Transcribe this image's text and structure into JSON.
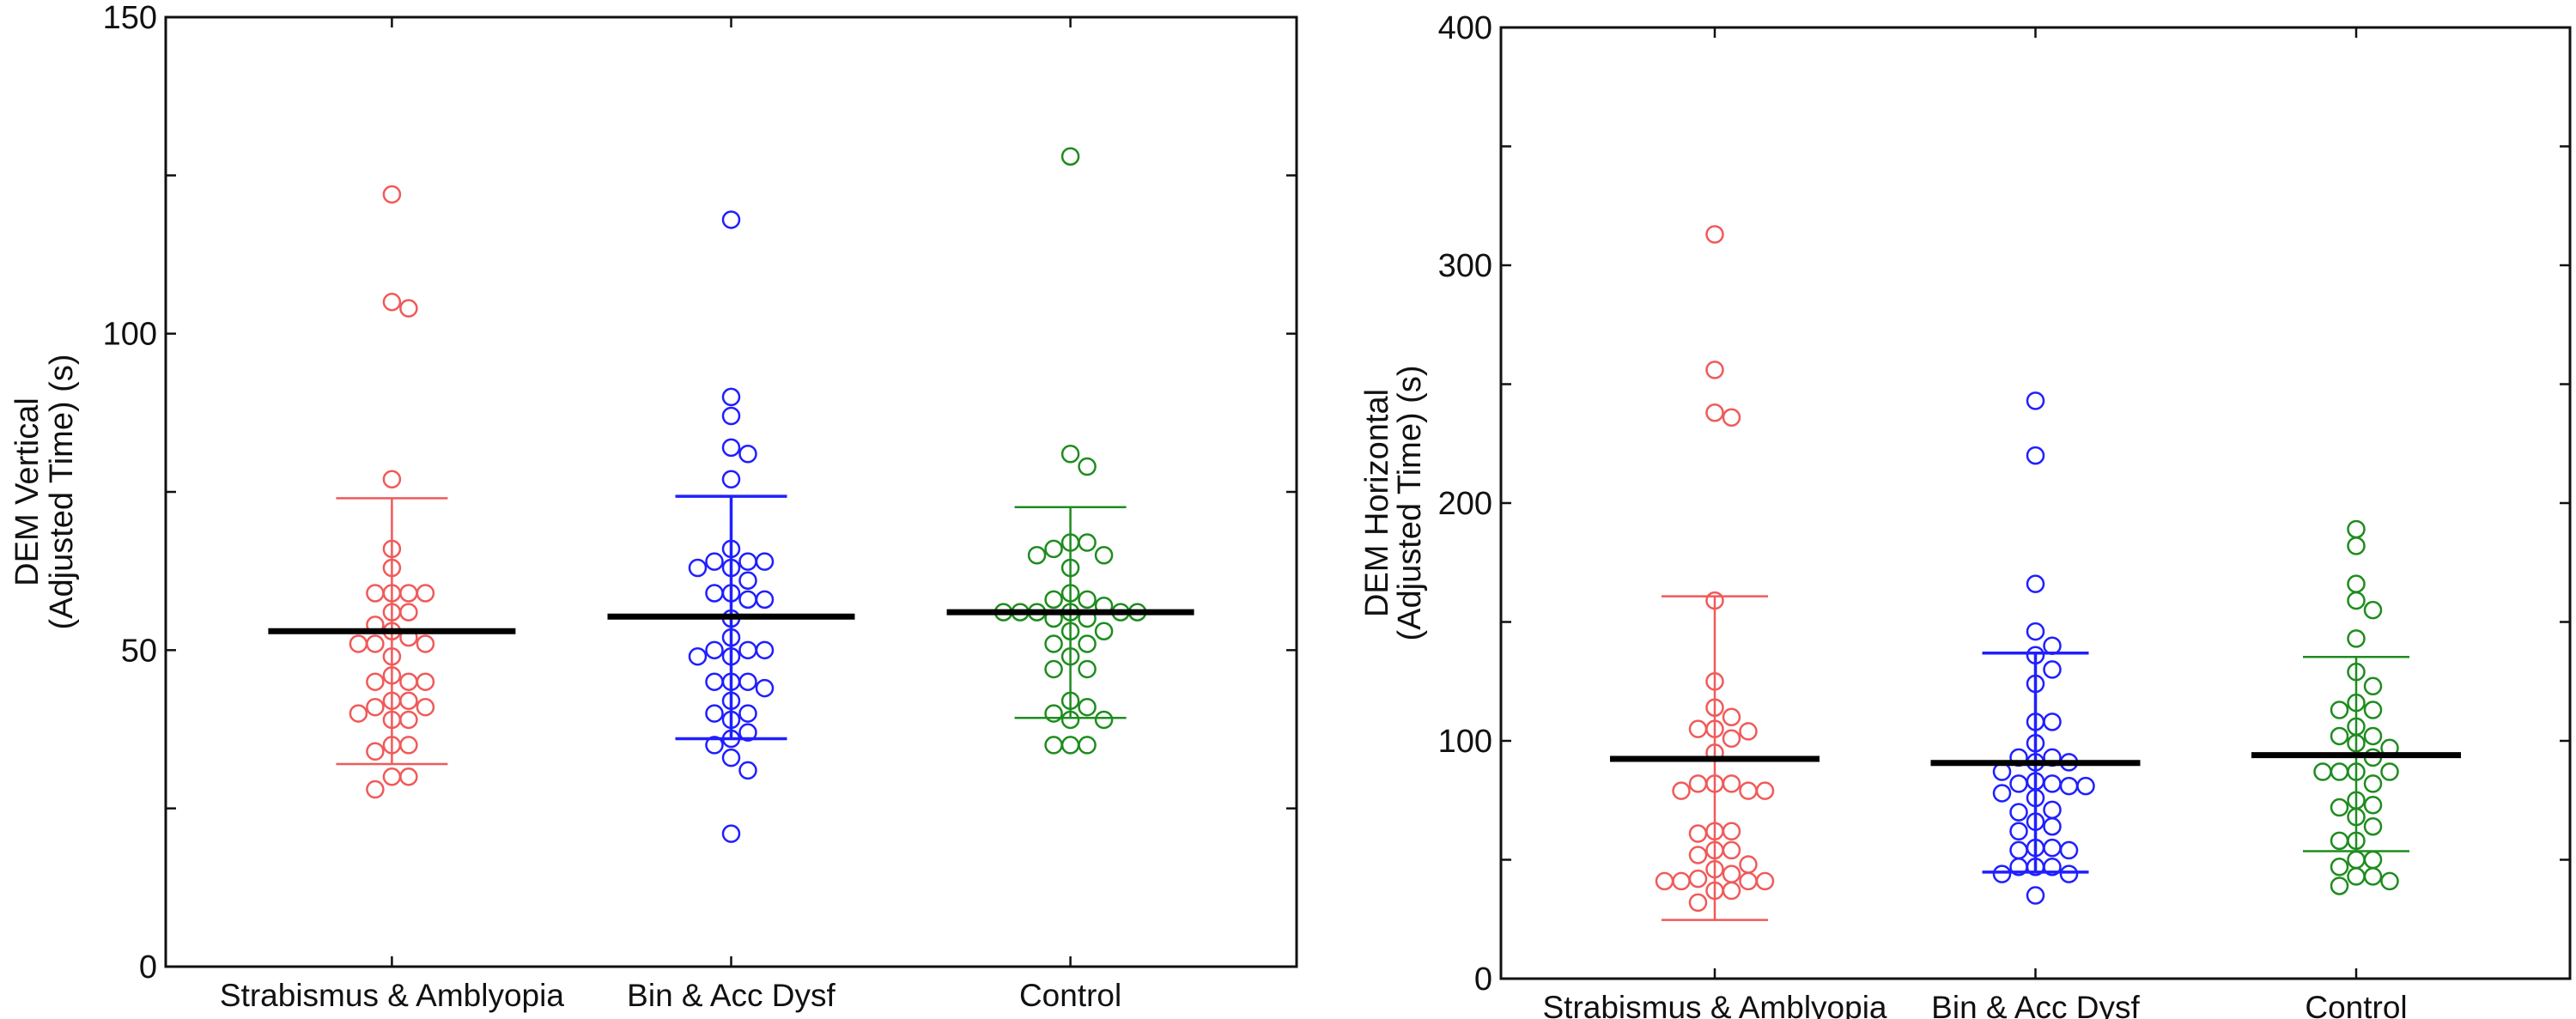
{
  "chart_data": [
    {
      "type": "scatter",
      "subtype": "dot-plot-with-mean-and-error-bars",
      "ylabel_lines": [
        "DEM Vertical",
        "(Adjusted Time) (s)"
      ],
      "ylim": [
        0,
        150
      ],
      "yticks": [
        0,
        50,
        100,
        150
      ],
      "yminor_step": 25,
      "categories": [
        "Strabismus & Amblyopia",
        "Bin & Acc Dysf",
        "Control"
      ],
      "grid": false,
      "series": [
        {
          "category": "Strabismus & Amblyopia",
          "color": "#f05a5a",
          "mean": 53,
          "error_low": 32,
          "error_high": 74,
          "values": [
            122,
            105,
            104,
            77,
            66,
            63,
            59,
            59,
            59,
            59,
            56,
            56,
            54,
            53,
            52,
            51,
            51,
            51,
            49,
            46,
            45,
            45,
            45,
            42,
            42,
            41,
            41,
            40,
            39,
            39,
            35,
            35,
            34,
            30,
            30,
            28
          ]
        },
        {
          "category": "Bin & Acc Dysf",
          "color": "#1f1fff",
          "mean": 55.3,
          "error_low": 36,
          "error_high": 74.3,
          "values": [
            118,
            90,
            87,
            82,
            81,
            77,
            66,
            64,
            64,
            64,
            63,
            63,
            61,
            59,
            59,
            58,
            58,
            55,
            52,
            50,
            50,
            50,
            49,
            49,
            45,
            45,
            45,
            44,
            42,
            40,
            40,
            39,
            37,
            36,
            35,
            33,
            31,
            21
          ]
        },
        {
          "category": "Control",
          "color": "#1e8c1e",
          "mean": 56,
          "error_low": 39.3,
          "error_high": 72.6,
          "values": [
            128,
            81,
            79,
            67,
            67,
            66,
            65,
            65,
            63,
            59,
            58,
            58,
            57,
            56,
            56,
            56,
            56,
            56,
            56,
            55,
            55,
            53,
            53,
            51,
            51,
            49,
            47,
            47,
            42,
            41,
            40,
            39,
            39,
            35,
            35,
            35
          ]
        }
      ]
    },
    {
      "type": "scatter",
      "subtype": "dot-plot-with-mean-and-error-bars",
      "ylabel_lines": [
        "DEM Horizontal",
        "(Adjusted Time) (s)"
      ],
      "ylim": [
        0,
        400
      ],
      "yticks": [
        0,
        100,
        200,
        300,
        400
      ],
      "yminor_step": 50,
      "categories": [
        "Strabismus & Amblyopia",
        "Bin & Acc Dysf",
        "Control"
      ],
      "grid": false,
      "series": [
        {
          "category": "Strabismus & Amblyopia",
          "color": "#f05a5a",
          "mean": 92.4,
          "error_low": 24.7,
          "error_high": 160.8,
          "values": [
            313,
            256,
            238,
            236,
            159,
            125,
            114,
            110,
            105,
            105,
            104,
            101,
            95,
            82,
            82,
            82,
            79,
            79,
            79,
            62,
            62,
            61,
            54,
            54,
            52,
            48,
            46,
            44,
            42,
            41,
            41,
            41,
            41,
            37,
            37,
            32
          ]
        },
        {
          "category": "Bin & Acc Dysf",
          "color": "#1f1fff",
          "mean": 90.7,
          "error_low": 44.8,
          "error_high": 136.9,
          "values": [
            243,
            220,
            166,
            146,
            140,
            136,
            130,
            124,
            108,
            108,
            99,
            93,
            93,
            91,
            91,
            87,
            83,
            82,
            82,
            81,
            81,
            78,
            76,
            71,
            70,
            66,
            64,
            62,
            55,
            55,
            54,
            54,
            47,
            47,
            47,
            44,
            44,
            35
          ]
        },
        {
          "category": "Control",
          "color": "#1e8c1e",
          "mean": 94,
          "error_low": 53.6,
          "error_high": 135.3,
          "values": [
            189,
            182,
            166,
            159,
            155,
            143,
            129,
            123,
            116,
            113,
            113,
            106,
            102,
            102,
            99,
            97,
            93,
            87,
            87,
            87,
            87,
            82,
            75,
            73,
            72,
            68,
            64,
            58,
            58,
            50,
            50,
            47,
            43,
            43,
            41,
            39
          ]
        }
      ]
    }
  ]
}
